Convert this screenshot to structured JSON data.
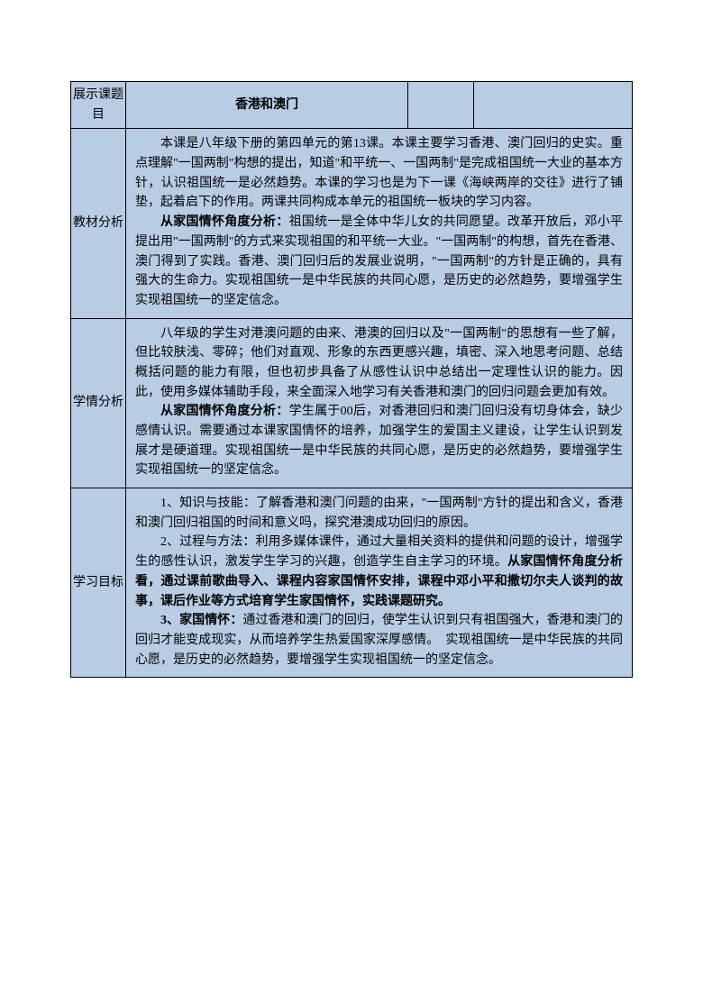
{
  "colors": {
    "cell_bg": "#b8cce4",
    "border": "#000000",
    "text": "#000000"
  },
  "header": {
    "label": "展示课题目",
    "title": "香港和澳门"
  },
  "rows": [
    {
      "label": "教材分析",
      "paragraphs": [
        {
          "text": "本课是八年级下册的第四单元的第13课。本课主要学习香港、澳门回归的史实。重点理解\"一国两制\"构想的提出，知道\"和平统一、一国两制\"是完成祖国统一大业的基本方针，认识祖国统一是必然趋势。本课的学习也是为下一课《海峡两岸的交往》进行了铺垫，起着启下的作用。两课共同构成本单元的祖国统一板块的学习内容。"
        },
        {
          "lead": "从家国情怀角度分析：",
          "text": "祖国统一是全体中华儿女的共同愿望。改革开放后，邓小平提出用\"一国两制\"的方式来实现祖国的和平统一大业。\"一国两制\"的构想，首先在香港、澳门得到了实践。香港、澳门回归后的发展业说明，\"一国两制\"的方针是正确的，具有强大的生命力。实现祖国统一是中华民族的共同心愿，是历史的必然趋势，要增强学生实现祖国统一的坚定信念。"
        }
      ]
    },
    {
      "label": "学情分析",
      "paragraphs": [
        {
          "text": "八年级的学生对港澳问题的由来、港澳的回归以及\"一国两制\"的思想有一些了解，但比较肤浅、零碎；他们对直观、形象的东西更感兴趣，填密、深入地思考问题、总结概括问题的能力有限，但也初步具备了从感性认识中总结出一定理性认识的能力。因此，使用多媒体辅助手段，来全面深入地学习有关香港和澳门的回归问题会更加有效。"
        },
        {
          "lead": "从家国情怀角度分析：",
          "text": "学生属于00后，对香港回归和澳门回归没有切身体会，缺少感情认识。需要通过本课家国情怀的培养，加强学生的爱国主义建设，让学生认识到发展才是硬道理。实现祖国统一是中华民族的共同心愿，是历史的必然趋势，要增强学生实现祖国统一的坚定信念。"
        }
      ]
    },
    {
      "label": "学习目标",
      "paragraphs": [
        {
          "text": "1、知识与技能：了解香港和澳门问题的由来，\"一国两制\"方针的提出和含义，香港和澳门回归祖国的时间和意义吗，探究港澳成功回归的原因。"
        },
        {
          "pre": "2、过程与方法：利用多媒体课件，通过大量相关资料的提供和问题的设计，增强学生的感性认识，激发学生学习的兴趣，创造学生自主学习的环境。",
          "bold_tail": "从家国情怀角度分析看，通过课前歌曲导入、课程内容家国情怀安排，课程中邓小平和撒切尔夫人谈判的故事，课后作业等方式培育学生家国情怀，实践课题研究。"
        },
        {
          "lead": "3、家国情怀：",
          "text": "通过香港和澳门的回归，使学生认识到只有祖国强大，香港和澳门的回归才能变成现实，从而培养学生热爱国家深厚感情。　实现祖国统一是中华民族的共同心愿，是历史的必然趋势，要增强学生实现祖国统一的坚定信念。"
        }
      ]
    }
  ]
}
